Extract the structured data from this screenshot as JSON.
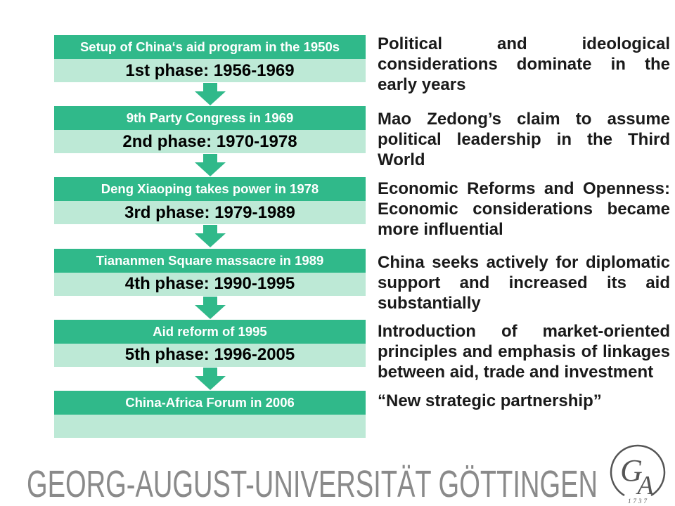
{
  "phases": [
    {
      "event": "Setup of China‘s aid program in the 1950s",
      "phase": "1st phase: 1956-1969"
    },
    {
      "event": "9th Party Congress in 1969",
      "phase": "2nd phase: 1970-1978"
    },
    {
      "event": "Deng Xiaoping takes power in 1978",
      "phase": "3rd phase: 1979-1989"
    },
    {
      "event": "Tiananmen Square massacre in 1989",
      "phase": "4th phase: 1990-1995"
    },
    {
      "event": "Aid reform of 1995",
      "phase": "5th phase: 1996-2005"
    },
    {
      "event": "China-Africa Forum in 2006"
    }
  ],
  "notes": [
    {
      "lines": [
        "Political and ideological",
        "considerations dominate in the",
        "early years"
      ]
    },
    {
      "lines": [
        "Mao Zedong’s claim to assume",
        "political leadership in the Third",
        "World"
      ]
    },
    {
      "lines": [
        "Economic Reforms and Openness:",
        "Economic considerations became",
        "more influential"
      ]
    },
    {
      "lines": [
        "China seeks actively for diplomatic",
        "support and increased its aid",
        "substantially"
      ]
    },
    {
      "lines": [
        "Introduction of market-oriented",
        "principles and emphasis of linkages",
        "between aid, trade and investment"
      ]
    },
    {
      "lines": [
        "“New strategic partnership”"
      ]
    }
  ],
  "footer": {
    "university_name": "GEORG-AUGUST-UNIVERSITÄT GÖTTINGEN"
  },
  "logo": {
    "letter_g": "G",
    "letter_a": "A",
    "year": "1737"
  },
  "icons": {
    "connector": "down-arrow-icon",
    "seal": "university-seal-icon"
  },
  "colors": {
    "header": "#30b98a",
    "body": "#bde9d6",
    "arrow": "#30b98a",
    "phase_text": "#000000",
    "text": "#1a1a1a",
    "footer": "#8a8a8a",
    "logo": "#555555"
  }
}
